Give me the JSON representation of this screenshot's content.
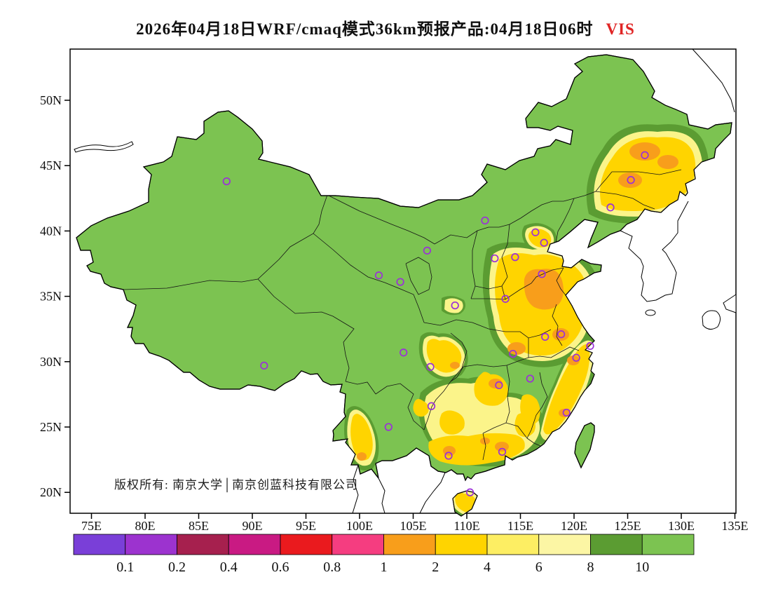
{
  "header": {
    "title_main": "2026年04月18日WRF/cmaq模式36km预报产品:04月18日06时",
    "title_var": "VIS"
  },
  "map": {
    "copyright": "版权所有: 南京大学│南京创蓝科技有限公司"
  },
  "axes": {
    "lat": [
      {
        "label": "50N",
        "deg": 50
      },
      {
        "label": "45N",
        "deg": 45
      },
      {
        "label": "40N",
        "deg": 40
      },
      {
        "label": "35N",
        "deg": 35
      },
      {
        "label": "30N",
        "deg": 30
      },
      {
        "label": "25N",
        "deg": 25
      },
      {
        "label": "20N",
        "deg": 20
      }
    ],
    "lon": [
      {
        "label": "75E",
        "deg": 75
      },
      {
        "label": "80E",
        "deg": 80
      },
      {
        "label": "85E",
        "deg": 85
      },
      {
        "label": "90E",
        "deg": 90
      },
      {
        "label": "95E",
        "deg": 95
      },
      {
        "label": "100E",
        "deg": 100
      },
      {
        "label": "105E",
        "deg": 105
      },
      {
        "label": "110E",
        "deg": 110
      },
      {
        "label": "115E",
        "deg": 115
      },
      {
        "label": "120E",
        "deg": 120
      },
      {
        "label": "125E",
        "deg": 125
      },
      {
        "label": "130E",
        "deg": 130
      },
      {
        "label": "135E",
        "deg": 135
      }
    ]
  },
  "legend": {
    "labels": [
      "0.1",
      "0.2",
      "0.4",
      "0.6",
      "0.8",
      "1",
      "2",
      "4",
      "6",
      "8",
      "10"
    ],
    "colors": [
      "#7a3fd8",
      "#9c33cf",
      "#a6204e",
      "#c91a83",
      "#ea1a1e",
      "#f53d80",
      "#f89e1b",
      "#ffd400",
      "#fdee63",
      "#fcf6a4",
      "#5b9c32",
      "#7cc351"
    ]
  },
  "style": {
    "title_var_color": "#e02424",
    "marker_color": "#9b30d9",
    "land_fill": "#7cc351",
    "dark_green": "#5b9c32",
    "pale_yellow": "#fbf48a",
    "yellow": "#ffd400",
    "orange": "#f89e1b",
    "outline": "#000000"
  },
  "city_markers": [
    [
      87.6,
      43.8
    ],
    [
      91.1,
      29.7
    ],
    [
      101.8,
      36.6
    ],
    [
      103.8,
      36.1
    ],
    [
      106.3,
      38.5
    ],
    [
      111.7,
      40.8
    ],
    [
      116.4,
      39.9
    ],
    [
      117.2,
      39.1
    ],
    [
      114.5,
      38.0
    ],
    [
      112.6,
      37.9
    ],
    [
      117.0,
      36.7
    ],
    [
      113.6,
      34.8
    ],
    [
      108.9,
      34.3
    ],
    [
      104.1,
      30.7
    ],
    [
      106.6,
      29.6
    ],
    [
      114.3,
      30.6
    ],
    [
      117.3,
      31.9
    ],
    [
      118.8,
      32.1
    ],
    [
      121.5,
      31.2
    ],
    [
      120.2,
      30.3
    ],
    [
      115.9,
      28.7
    ],
    [
      113.0,
      28.2
    ],
    [
      106.7,
      26.6
    ],
    [
      102.7,
      25.0
    ],
    [
      108.3,
      22.8
    ],
    [
      113.3,
      23.1
    ],
    [
      119.3,
      26.1
    ],
    [
      110.3,
      20.0
    ],
    [
      123.4,
      41.8
    ],
    [
      125.3,
      43.9
    ],
    [
      126.6,
      45.8
    ]
  ],
  "chart_data": {
    "type": "filled-contour-map",
    "variable": "VIS",
    "model": "WRF/cmaq 36km",
    "valid_time": "04月18日06时",
    "lon_range": [
      75,
      135
    ],
    "lat_range": [
      18.5,
      54
    ],
    "contour_levels": [
      0.1,
      0.2,
      0.4,
      0.6,
      0.8,
      1,
      2,
      4,
      6,
      8,
      10
    ],
    "background_level": ">10",
    "low_visibility_regions": [
      "Northeast China (Jilin/Heilongjiang/Liaoning)",
      "North China Plain (Shandong/Henan/Anhui/Jiangsu)",
      "Beijing-Tianjin area",
      "Sichuan Basin",
      "Hunan / Jiangxi",
      "Guangdong / Guangxi coast",
      "Zhejiang / Fujian coast",
      "Western Yunnan",
      "Hainan Island"
    ]
  }
}
